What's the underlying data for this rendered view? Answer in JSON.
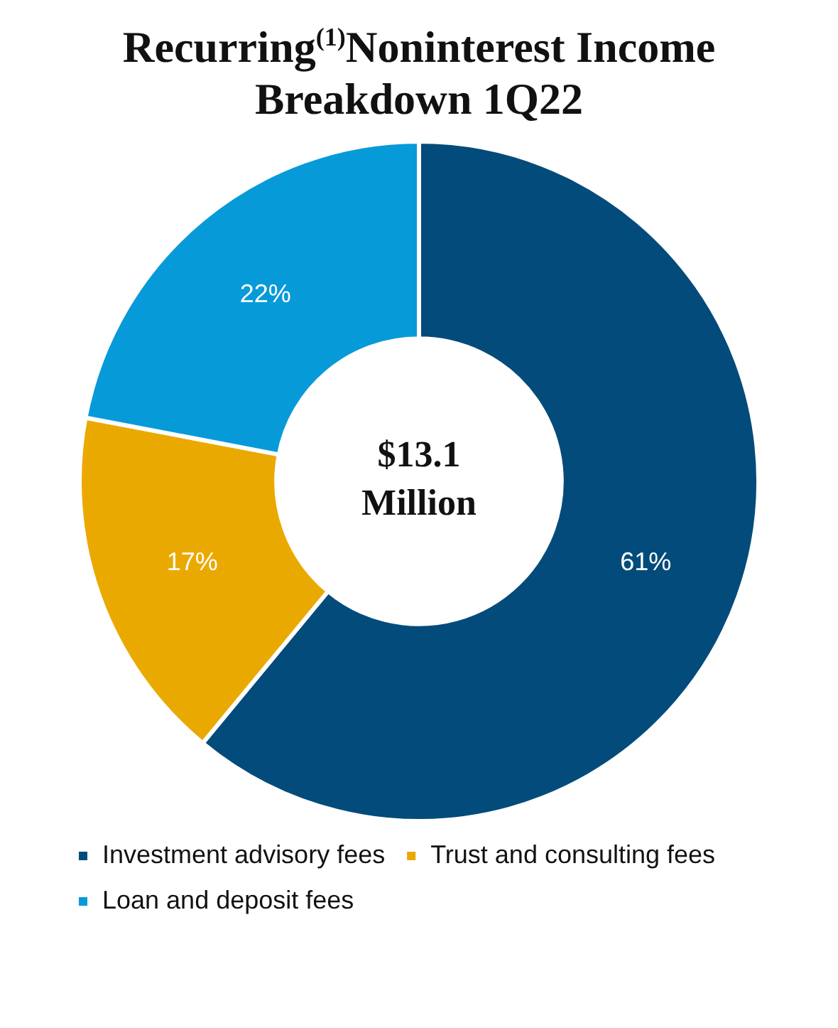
{
  "chart_data": {
    "type": "donut",
    "title": "Recurring$^{(1)}$Noninterest Income Breakdown 1Q22",
    "categories": [
      "Investment advisory fees",
      "Trust and consulting fees",
      "Loan and deposit fees"
    ],
    "values": [
      61,
      17,
      22
    ],
    "colors": [
      "#034b7b",
      "#eaa900",
      "#079ad9"
    ],
    "value_labels": [
      "61%",
      "17%",
      "22%"
    ],
    "legend": "bottom",
    "annotations": [
      "$13.1 Million"
    ]
  }
}
